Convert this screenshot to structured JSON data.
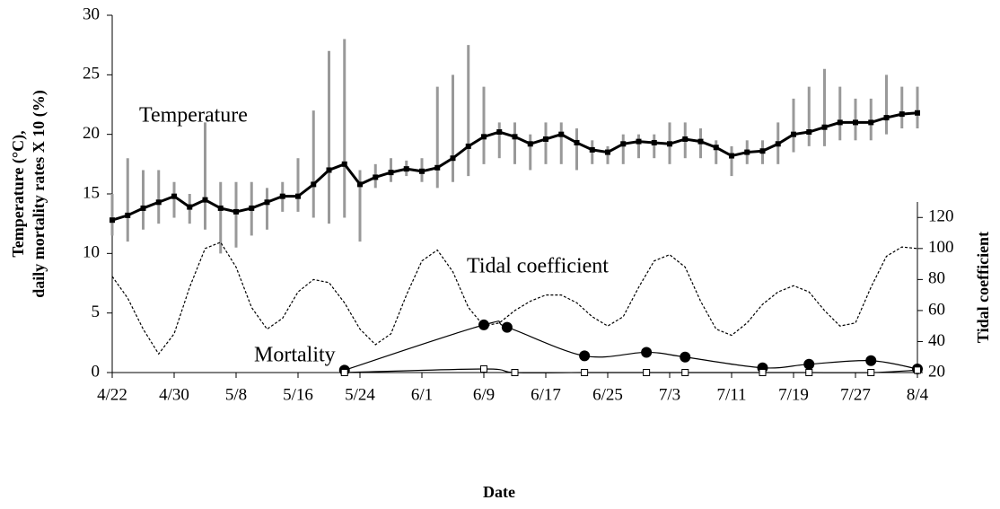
{
  "chart_data": {
    "type": "line",
    "x_label": "Date",
    "y_label": [
      "Temperature  (°C),",
      "daily mortality rates X 10 (%)"
    ],
    "y2_label": "Tidal coefficient",
    "xlim": [
      "4/22",
      "8/4"
    ],
    "xticks": [
      "4/22",
      "4/30",
      "5/8",
      "5/16",
      "5/24",
      "6/1",
      "6/9",
      "6/17",
      "6/25",
      "7/3",
      "7/11",
      "7/19",
      "7/27",
      "8/4"
    ],
    "ylim": [
      0,
      30
    ],
    "yticks": [
      0,
      5,
      10,
      15,
      20,
      25,
      30
    ],
    "y2lim": [
      20,
      130
    ],
    "y2ticks": [
      20,
      40,
      60,
      80,
      100,
      120
    ],
    "series": [
      {
        "name": "Temperature",
        "color": "#000000",
        "range_color": "#999999",
        "marker": "square",
        "x": [
          "4/22",
          "4/24",
          "4/26",
          "4/28",
          "4/30",
          "5/2",
          "5/4",
          "5/6",
          "5/8",
          "5/10",
          "5/12",
          "5/14",
          "5/16",
          "5/18",
          "5/20",
          "5/22",
          "5/24",
          "5/26",
          "5/28",
          "5/30",
          "6/1",
          "6/3",
          "6/5",
          "6/7",
          "6/9",
          "6/11",
          "6/13",
          "6/15",
          "6/17",
          "6/19",
          "6/21",
          "6/23",
          "6/25",
          "6/27",
          "6/29",
          "7/1",
          "7/3",
          "7/5",
          "7/7",
          "7/9",
          "7/11",
          "7/13",
          "7/15",
          "7/17",
          "7/19",
          "7/21",
          "7/23",
          "7/25",
          "7/27",
          "7/29",
          "7/31",
          "8/2",
          "8/4"
        ],
        "values": [
          12.8,
          13.2,
          13.8,
          14.3,
          14.8,
          13.9,
          14.5,
          13.8,
          13.5,
          13.8,
          14.3,
          14.8,
          14.8,
          15.8,
          17.0,
          17.5,
          15.8,
          16.4,
          16.8,
          17.1,
          16.9,
          17.2,
          18.0,
          19.0,
          19.8,
          20.2,
          19.8,
          19.2,
          19.6,
          20.0,
          19.3,
          18.7,
          18.5,
          19.2,
          19.4,
          19.3,
          19.2,
          19.6,
          19.4,
          18.9,
          18.2,
          18.5,
          18.6,
          19.2,
          20.0,
          20.2,
          20.6,
          21.0,
          21.0,
          21.0,
          21.4,
          21.7,
          21.8
        ],
        "low": [
          11.5,
          11,
          12,
          12.5,
          13,
          12.5,
          12,
          10,
          10.5,
          11.5,
          12,
          13.5,
          13.5,
          13,
          12.5,
          13,
          11,
          15.5,
          16,
          16.5,
          16,
          15.5,
          16,
          16.5,
          17.5,
          18,
          17.5,
          17,
          17.5,
          17.5,
          17,
          17.5,
          17.5,
          17.5,
          18,
          18,
          17.5,
          18,
          18,
          17.5,
          16.5,
          17.5,
          17.5,
          17.5,
          18.5,
          19,
          19,
          19.5,
          19.5,
          19.5,
          20,
          20.5,
          20.5
        ],
        "high": [
          15,
          18,
          17,
          17,
          16,
          15,
          21,
          16,
          16,
          16,
          15.5,
          16,
          18,
          22,
          27,
          28,
          17,
          17.5,
          18,
          17.8,
          18,
          24,
          25,
          27.5,
          24,
          21,
          21,
          20,
          21,
          21,
          20.5,
          19.5,
          19,
          20,
          20,
          20,
          21,
          21,
          20.5,
          19.5,
          19,
          19.5,
          19.5,
          21,
          23,
          24,
          25.5,
          24,
          23,
          23,
          25,
          24,
          24
        ]
      },
      {
        "name": "Tidal coefficient",
        "color": "#000000",
        "axis": "y2",
        "dash": true,
        "x": [
          "4/22",
          "4/24",
          "4/26",
          "4/28",
          "4/30",
          "5/2",
          "5/4",
          "5/6",
          "5/8",
          "5/10",
          "5/12",
          "5/14",
          "5/16",
          "5/18",
          "5/20",
          "5/22",
          "5/24",
          "5/26",
          "5/28",
          "5/30",
          "6/1",
          "6/3",
          "6/5",
          "6/7",
          "6/9",
          "6/11",
          "6/13",
          "6/15",
          "6/17",
          "6/19",
          "6/21",
          "6/23",
          "6/25",
          "6/27",
          "6/29",
          "7/1",
          "7/3",
          "7/5",
          "7/7",
          "7/9",
          "7/11",
          "7/13",
          "7/15",
          "7/17",
          "7/19",
          "7/21",
          "7/23",
          "7/25",
          "7/27",
          "7/29",
          "7/31",
          "8/2",
          "8/4"
        ],
        "values": [
          82,
          68,
          48,
          32,
          45,
          75,
          100,
          104,
          88,
          62,
          48,
          55,
          72,
          80,
          78,
          65,
          48,
          38,
          45,
          70,
          92,
          99,
          85,
          62,
          50,
          52,
          60,
          66,
          70,
          70,
          65,
          56,
          50,
          56,
          75,
          92,
          96,
          88,
          66,
          48,
          44,
          52,
          64,
          72,
          76,
          72,
          60,
          50,
          52,
          75,
          95,
          101,
          100
        ]
      },
      {
        "name": "Mortality",
        "color": "#000000",
        "marker": "circle",
        "x": [
          "5/22",
          "6/9",
          "6/12",
          "6/22",
          "6/30",
          "7/5",
          "7/15",
          "7/21",
          "7/29",
          "8/4"
        ],
        "values": [
          0.2,
          4.0,
          3.8,
          1.4,
          1.7,
          1.3,
          0.4,
          0.7,
          1.0,
          0.3
        ]
      },
      {
        "color": "#000000",
        "marker": "open-square",
        "x": [
          "5/22",
          "6/9",
          "6/13",
          "6/22",
          "6/30",
          "7/5",
          "7/15",
          "7/21",
          "7/29",
          "8/4"
        ],
        "values": [
          0,
          0.3,
          0,
          0,
          0,
          0,
          0,
          0,
          0,
          0.2
        ]
      }
    ]
  }
}
